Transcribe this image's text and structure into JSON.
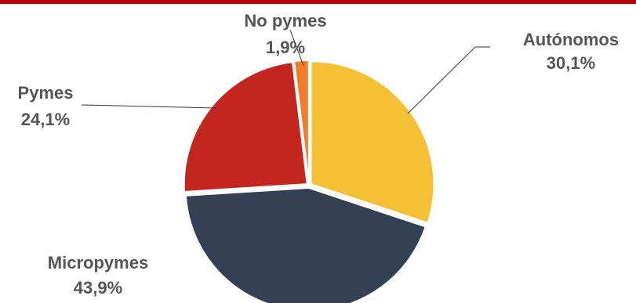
{
  "header": {
    "bar_color": "#c00000"
  },
  "chart_data": {
    "type": "pie",
    "title": "",
    "slices": [
      {
        "label": "Autónomos",
        "value": 30.1,
        "display": "30,1%",
        "color": "#f4c136"
      },
      {
        "label": "Micropymes",
        "value": 43.9,
        "display": "43,9%",
        "color": "#344154"
      },
      {
        "label": "Pymes",
        "value": 24.1,
        "display": "24,1%",
        "color": "#c3261f"
      },
      {
        "label": "No pymes",
        "value": 1.9,
        "display": "1,9%",
        "color": "#ef7d2a"
      }
    ],
    "start_angle_deg": 0,
    "direction": "clockwise",
    "legend": "none",
    "data_labels": "outside-with-leader-lines"
  }
}
